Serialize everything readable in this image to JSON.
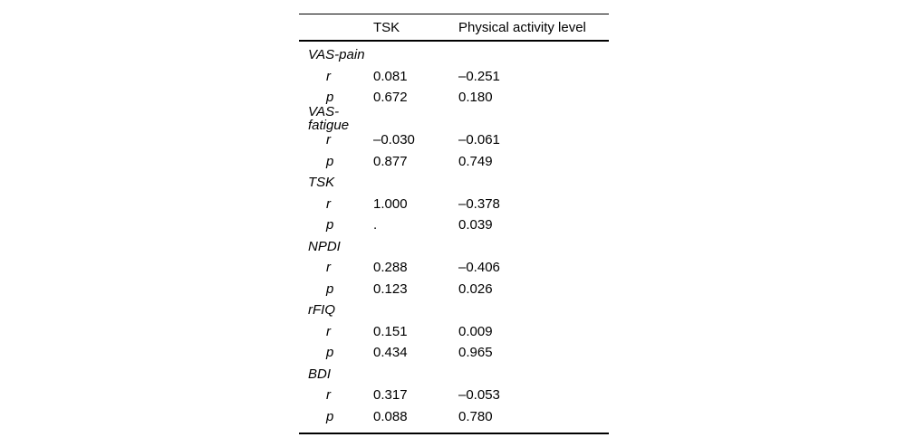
{
  "page": {
    "background": "#ffffff"
  },
  "table": {
    "columns": [
      "",
      "TSK",
      "Physical activity level"
    ],
    "stat_labels": {
      "r": "r",
      "p": "p"
    },
    "groups": [
      {
        "label": "VAS-pain",
        "r": [
          "0.081",
          "–0.251"
        ],
        "p": [
          "0.672",
          "0.180"
        ]
      },
      {
        "label": "VAS-fatigue",
        "r": [
          "–0.030",
          "–0.061"
        ],
        "p": [
          "0.877",
          "0.749"
        ]
      },
      {
        "label": "TSK",
        "r": [
          "1.000",
          "–0.378"
        ],
        "p": [
          ".",
          "0.039"
        ]
      },
      {
        "label": "NPDI",
        "r": [
          "0.288",
          "–0.406"
        ],
        "p": [
          "0.123",
          "0.026"
        ]
      },
      {
        "label": "rFIQ",
        "r": [
          "0.151",
          "0.009"
        ],
        "p": [
          "0.434",
          "0.965"
        ]
      },
      {
        "label": "BDI",
        "r": [
          "0.317",
          "–0.053"
        ],
        "p": [
          "0.088",
          "0.780"
        ]
      }
    ],
    "colors": {
      "text": "#000000",
      "rule": "#000000"
    }
  }
}
